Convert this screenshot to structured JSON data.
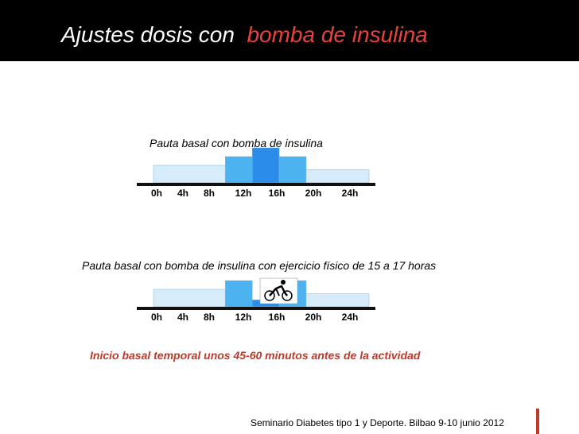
{
  "slide": {
    "title_main": "Ajustes dosis con",
    "title_accent": "bomba de insulina",
    "caption_top": "Pauta basal con bomba de insulina",
    "caption_bottom": "Pauta basal con bomba de insulina con ejercicio físico de 15 a 17 horas",
    "note": "Inicio basal temporal unos 45-60 minutos antes de la actividad",
    "footer": "Seminario Diabetes tipo  1 y Deporte. Bilbao 9-10 junio 2012",
    "exercise_icon": "cyclist-icon",
    "colors": {
      "title_bar": "#000000",
      "accent": "#e8433a",
      "note": "#c0392b",
      "basal_low": "#d6ecfa",
      "basal_mid": "#4db2f0",
      "basal_peak": "#2b8de9"
    }
  },
  "chart_data": [
    {
      "type": "bar",
      "title": "Pauta basal con bomba de insulina",
      "categories": [
        "0h",
        "4h",
        "8h",
        "12h",
        "16h",
        "20h",
        "24h"
      ],
      "segments": [
        {
          "from": 0,
          "to": 8,
          "level": 2
        },
        {
          "from": 8,
          "to": 11,
          "level": 3
        },
        {
          "from": 11,
          "to": 14,
          "level": 4
        },
        {
          "from": 14,
          "to": 17,
          "level": 3
        },
        {
          "from": 17,
          "to": 24,
          "level": 1.5
        }
      ],
      "ylim": [
        0,
        4
      ]
    },
    {
      "type": "bar",
      "title": "Pauta basal con bomba de insulina con ejercicio físico de 15 a 17 horas",
      "categories": [
        "0h",
        "4h",
        "8h",
        "12h",
        "16h",
        "20h",
        "24h"
      ],
      "segments": [
        {
          "from": 0,
          "to": 8,
          "level": 2
        },
        {
          "from": 8,
          "to": 11,
          "level": 3
        },
        {
          "from": 11,
          "to": 14,
          "level": 0.8
        },
        {
          "from": 14,
          "to": 17,
          "level": 3
        },
        {
          "from": 17,
          "to": 24,
          "level": 1.5
        }
      ],
      "ylim": [
        0,
        4
      ]
    }
  ]
}
